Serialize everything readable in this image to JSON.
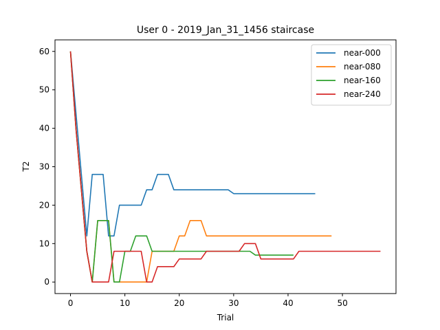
{
  "chart_data": {
    "type": "line",
    "title": "User 0 - 2019_Jan_31_1456 staircase",
    "xlabel": "Trial",
    "ylabel": "T2",
    "xlim": [
      -2.85,
      59.85
    ],
    "ylim": [
      -3,
      63
    ],
    "xticks": [
      0,
      10,
      20,
      30,
      40,
      50
    ],
    "yticks": [
      0,
      10,
      20,
      30,
      40,
      50,
      60
    ],
    "grid": false,
    "legend_position": "top-right",
    "series": [
      {
        "name": "near-000",
        "color": "#1f77b4",
        "x": [
          0,
          1,
          2,
          3,
          4,
          5,
          6,
          7,
          8,
          9,
          10,
          11,
          12,
          13,
          14,
          15,
          16,
          17,
          18,
          19,
          20,
          21,
          22,
          23,
          24,
          25,
          26,
          27,
          28,
          29,
          30,
          31,
          32,
          33,
          34,
          35,
          36,
          37,
          38,
          39,
          40,
          41,
          42,
          43,
          44,
          45
        ],
        "y": [
          60,
          44,
          28,
          12,
          28,
          28,
          28,
          12,
          12,
          20,
          20,
          20,
          20,
          20,
          24,
          24,
          28,
          28,
          28,
          24,
          24,
          24,
          24,
          24,
          24,
          24,
          24,
          24,
          24,
          24,
          23,
          23,
          23,
          23,
          23,
          23,
          23,
          23,
          23,
          23,
          23,
          23,
          23,
          23,
          23,
          23
        ]
      },
      {
        "name": "near-080",
        "color": "#ff7f0e",
        "x": [
          0,
          1,
          2,
          3,
          4,
          5,
          6,
          7,
          8,
          9,
          10,
          11,
          12,
          13,
          14,
          15,
          16,
          17,
          18,
          19,
          20,
          21,
          22,
          23,
          24,
          25,
          26,
          27,
          28,
          29,
          30,
          31,
          32,
          33,
          34,
          35,
          36,
          37,
          38,
          39,
          40,
          41,
          42,
          43,
          44,
          45,
          46,
          47,
          48
        ],
        "y": [
          60,
          40,
          24,
          8,
          0,
          16,
          16,
          16,
          0,
          0,
          0,
          0,
          0,
          0,
          0,
          8,
          8,
          8,
          8,
          8,
          12,
          12,
          16,
          16,
          16,
          12,
          12,
          12,
          12,
          12,
          12,
          12,
          12,
          12,
          12,
          12,
          12,
          12,
          12,
          12,
          12,
          12,
          12,
          12,
          12,
          12,
          12,
          12,
          12
        ]
      },
      {
        "name": "near-160",
        "color": "#2ca02c",
        "x": [
          0,
          1,
          2,
          3,
          4,
          5,
          6,
          7,
          8,
          9,
          10,
          11,
          12,
          13,
          14,
          15,
          16,
          17,
          18,
          19,
          20,
          21,
          22,
          23,
          24,
          25,
          26,
          27,
          28,
          29,
          30,
          31,
          32,
          33,
          34,
          35,
          36,
          37,
          38,
          39,
          40,
          41
        ],
        "y": [
          60,
          40,
          24,
          8,
          0,
          16,
          16,
          16,
          0,
          0,
          8,
          8,
          12,
          12,
          12,
          8,
          8,
          8,
          8,
          8,
          8,
          8,
          8,
          8,
          8,
          8,
          8,
          8,
          8,
          8,
          8,
          8,
          8,
          8,
          7,
          7,
          7,
          7,
          7,
          7,
          7,
          7
        ]
      },
      {
        "name": "near-240",
        "color": "#d62728",
        "x": [
          0,
          1,
          2,
          3,
          4,
          5,
          6,
          7,
          8,
          9,
          10,
          11,
          12,
          13,
          14,
          15,
          16,
          17,
          18,
          19,
          20,
          21,
          22,
          23,
          24,
          25,
          26,
          27,
          28,
          29,
          30,
          31,
          32,
          33,
          34,
          35,
          36,
          37,
          38,
          39,
          40,
          41,
          42,
          43,
          44,
          45,
          46,
          47,
          48,
          49,
          50,
          51,
          52,
          53,
          54,
          55,
          56,
          57
        ],
        "y": [
          60,
          40,
          24,
          8,
          0,
          0,
          0,
          0,
          8,
          8,
          8,
          8,
          8,
          8,
          0,
          0,
          4,
          4,
          4,
          4,
          6,
          6,
          6,
          6,
          6,
          8,
          8,
          8,
          8,
          8,
          8,
          8,
          10,
          10,
          10,
          6,
          6,
          6,
          6,
          6,
          6,
          6,
          8,
          8,
          8,
          8,
          8,
          8,
          8,
          8,
          8,
          8,
          8,
          8,
          8,
          8,
          8,
          8
        ]
      }
    ]
  }
}
